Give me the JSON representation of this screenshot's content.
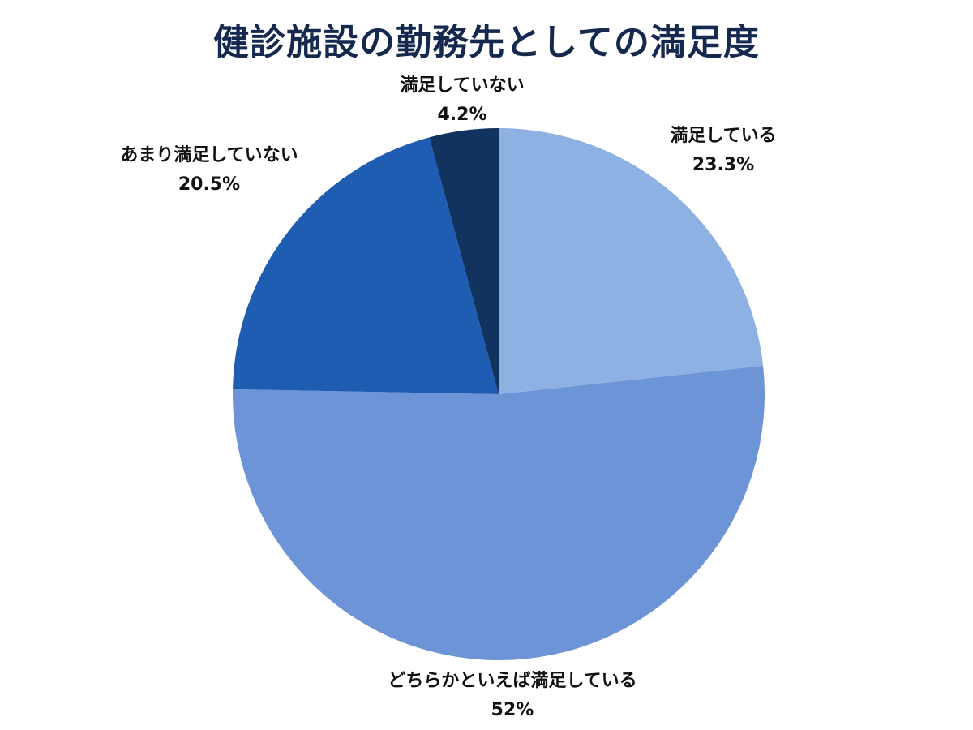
{
  "chart_data": {
    "type": "pie",
    "title": "健診施設の勤務先としての満足度",
    "start_angle_deg": 0,
    "direction": "clockwise",
    "slices": [
      {
        "label": "満足している",
        "value": 23.3,
        "value_label": "23.3%",
        "color": "#8eb1e4"
      },
      {
        "label": "どちらかといえば満足している",
        "value": 52,
        "value_label": "52%",
        "color": "#6d94d7"
      },
      {
        "label": "あまり満足していない",
        "value": 20.5,
        "value_label": "20.5%",
        "color": "#1f5db2"
      },
      {
        "label": "満足していない",
        "value": 4.2,
        "value_label": "4.2%",
        "color": "#12325f"
      }
    ]
  }
}
